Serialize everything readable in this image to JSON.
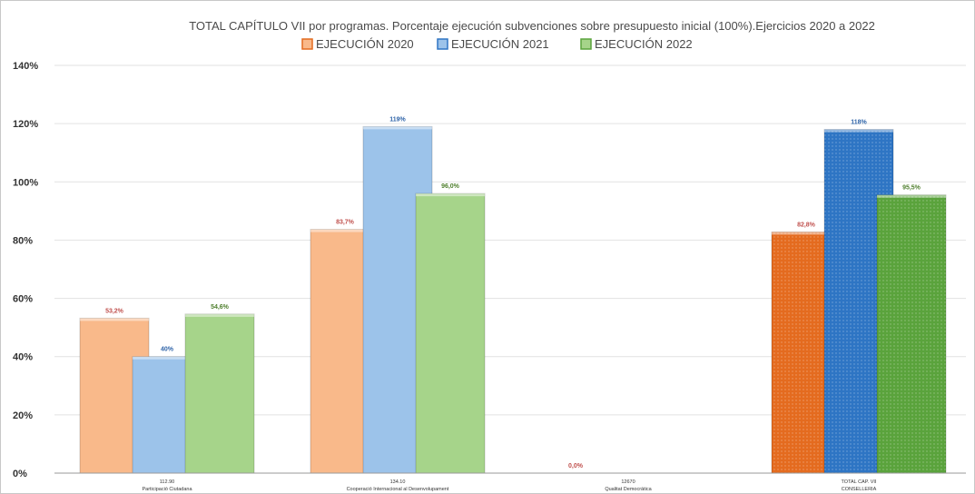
{
  "chart_data": {
    "type": "bar",
    "title": "TOTAL CAPÍTULO VII por programas. Porcentaje ejecución subvenciones sobre presupuesto inicial (100%).Ejercicios  2020 a 2022",
    "xlabel": "",
    "ylabel": "",
    "ylim": [
      0,
      140
    ],
    "yticks": [
      "0%",
      "20%",
      "40%",
      "60%",
      "80%",
      "100%",
      "120%",
      "140%"
    ],
    "grid": true,
    "legend_position": "top",
    "categories": [
      {
        "code": "112.90",
        "name": "Participació Ciutadana"
      },
      {
        "code": "134.10",
        "name": "Cooperació Internacional al Desenvolupament"
      },
      {
        "code": "12670",
        "name": "Qualitat Democràtica"
      },
      {
        "code": "TOTAL CAP. VII",
        "name": "CONSELLERIA"
      }
    ],
    "series": [
      {
        "name": "EJECUCIÓN 2020",
        "values": [
          53.2,
          83.7,
          0.0,
          82.8
        ],
        "labels": [
          "53,2%",
          "83,7%",
          "0,0%",
          "82,8%"
        ],
        "colors": {
          "light": "#f9b98a",
          "dark": "#e46b1f"
        }
      },
      {
        "name": "EJECUCIÓN 2021",
        "values": [
          40,
          119,
          null,
          118
        ],
        "labels": [
          "40%",
          "119%",
          "",
          "118%"
        ],
        "colors": {
          "light": "#9cc3ea",
          "dark": "#2e75c4"
        }
      },
      {
        "name": "EJECUCIÓN 2022",
        "values": [
          54.6,
          96.0,
          null,
          95.5
        ],
        "labels": [
          "54,6%",
          "96,0%",
          "",
          "95,5%"
        ],
        "colors": {
          "light": "#a6d48a",
          "dark": "#5aa33c"
        }
      }
    ]
  }
}
